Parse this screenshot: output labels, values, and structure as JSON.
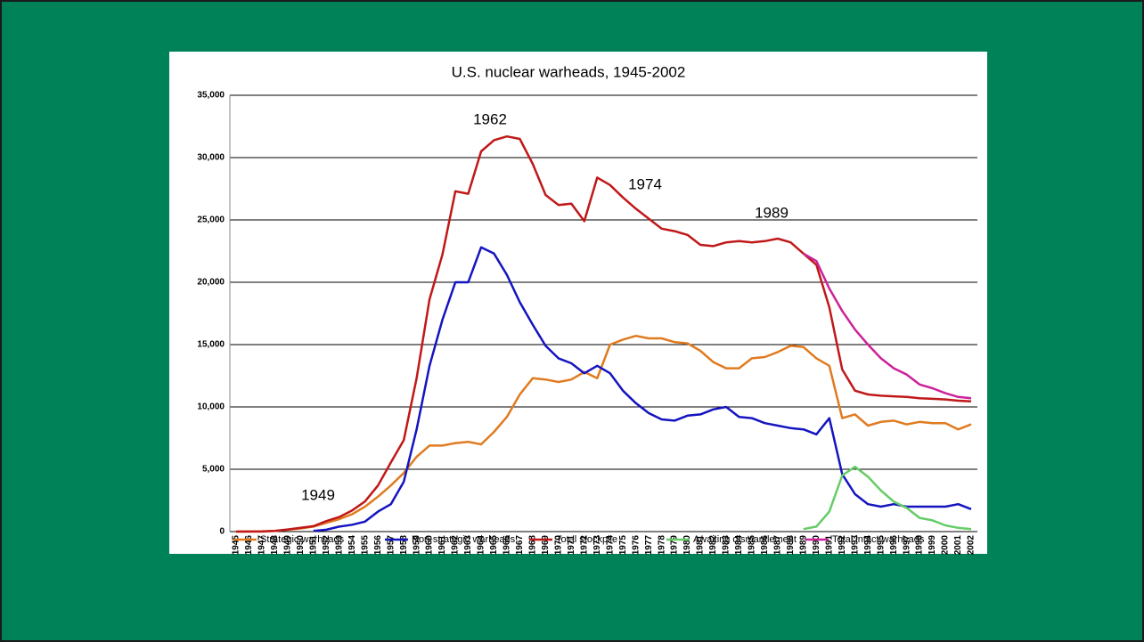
{
  "chart_data": {
    "type": "line",
    "title": "U.S. nuclear warheads, 1945-2002",
    "categories": [
      "1945",
      "1946",
      "1947",
      "1948",
      "1949",
      "1950",
      "1951",
      "1952",
      "1953",
      "1954",
      "1955",
      "1956",
      "1957",
      "1958",
      "1959",
      "1960",
      "1961",
      "1962",
      "1963",
      "1964",
      "1965",
      "1966",
      "1967",
      "1968",
      "1969",
      "1970",
      "1971",
      "1972",
      "1973",
      "1974",
      "1975",
      "1976",
      "1977",
      "1978",
      "1979",
      "1980",
      "1981",
      "1982",
      "1983",
      "1984",
      "1985",
      "1986",
      "1987",
      "1988",
      "1989",
      "1990",
      "1991",
      "1992",
      "1993",
      "1994",
      "1995",
      "1996",
      "1997",
      "1998",
      "1999",
      "2000",
      "2001",
      "2002"
    ],
    "series": [
      {
        "name": "Strategic warheads",
        "color": "#e07b20",
        "values": [
          0,
          0,
          0,
          50,
          150,
          250,
          400,
          700,
          1000,
          1400,
          2000,
          2800,
          3700,
          4700,
          6000,
          6900,
          6900,
          7100,
          7200,
          7000,
          8000,
          9200,
          11000,
          12300,
          12200,
          12000,
          12200,
          12800,
          12300,
          15000,
          15400,
          15700,
          15500,
          15500,
          15200,
          15100,
          14500,
          13600,
          13100,
          13100,
          13900,
          14000,
          14400,
          14900,
          14800,
          13900,
          13300,
          9100,
          9400,
          8500,
          8800,
          8900,
          8600,
          8800,
          8700,
          8700,
          8200,
          8600
        ]
      },
      {
        "name": "Non-strategic warheads",
        "color": "#1414c0",
        "values": [
          null,
          null,
          null,
          null,
          null,
          null,
          50,
          150,
          400,
          550,
          800,
          1600,
          2200,
          4000,
          8200,
          13300,
          17000,
          20000,
          20000,
          22800,
          22300,
          20600,
          18400,
          16600,
          14900,
          13900,
          13500,
          12700,
          13300,
          12700,
          11300,
          10300,
          9500,
          9000,
          8900,
          9300,
          9400,
          9800,
          10000,
          9200,
          9100,
          8700,
          8500,
          8300,
          8200,
          7800,
          9100,
          4600,
          3000,
          2200,
          2000,
          2200,
          2000,
          2000,
          2000,
          2000,
          2200,
          1800
        ]
      },
      {
        "name": "Total stockpile",
        "color": "#c01818",
        "values": [
          2,
          9,
          13,
          50,
          170,
          299,
          438,
          841,
          1169,
          1703,
          2422,
          3692,
          5543,
          7345,
          12298,
          18638,
          22229,
          27300,
          27100,
          30500,
          31400,
          31700,
          31500,
          29500,
          27000,
          26200,
          26300,
          24900,
          28400,
          27800,
          26800,
          25900,
          25100,
          24300,
          24100,
          23800,
          23000,
          22900,
          23200,
          23300,
          23200,
          23300,
          23500,
          23200,
          22300,
          21400,
          18000,
          13000,
          11300,
          11000,
          10900,
          10850,
          10800,
          10700,
          10650,
          10600,
          10500,
          10450
        ]
      },
      {
        "name": "Awaiting dismantlement",
        "color": "#66cc66",
        "values": [
          null,
          null,
          null,
          null,
          null,
          null,
          null,
          null,
          null,
          null,
          null,
          null,
          null,
          null,
          null,
          null,
          null,
          null,
          null,
          null,
          null,
          null,
          null,
          null,
          null,
          null,
          null,
          null,
          null,
          null,
          null,
          null,
          null,
          null,
          null,
          null,
          null,
          null,
          null,
          null,
          null,
          null,
          null,
          null,
          200,
          400,
          1600,
          4500,
          5200,
          4400,
          3300,
          2400,
          1900,
          1100,
          900,
          500,
          300,
          200
        ]
      },
      {
        "name": "Total intact warheads",
        "color": "#cc2299",
        "values": [
          null,
          null,
          null,
          null,
          null,
          null,
          null,
          null,
          null,
          null,
          null,
          null,
          null,
          null,
          null,
          null,
          null,
          null,
          null,
          null,
          null,
          null,
          null,
          null,
          null,
          null,
          null,
          null,
          null,
          null,
          null,
          null,
          null,
          null,
          null,
          null,
          null,
          null,
          null,
          null,
          null,
          null,
          null,
          null,
          22300,
          21700,
          19500,
          17700,
          16200,
          15000,
          13900,
          13100,
          12600,
          11800,
          11500,
          11100,
          10800,
          10700
        ]
      }
    ],
    "ylim": [
      0,
      35000
    ],
    "yticks": [
      0,
      {
        "value": 5000,
        "label": "5,000"
      },
      {
        "value": 10000,
        "label": "10,000"
      },
      {
        "value": 15000,
        "label": "15,000"
      },
      {
        "value": 20000,
        "label": "20,000"
      },
      {
        "value": 25000,
        "label": "25,000"
      },
      {
        "value": 30000,
        "label": "30,000"
      },
      {
        "value": 35000,
        "label": "35,000"
      }
    ],
    "grid": true,
    "legend": "bottom",
    "annotations": [
      "1962",
      "1974",
      "1989",
      "1949"
    ]
  }
}
